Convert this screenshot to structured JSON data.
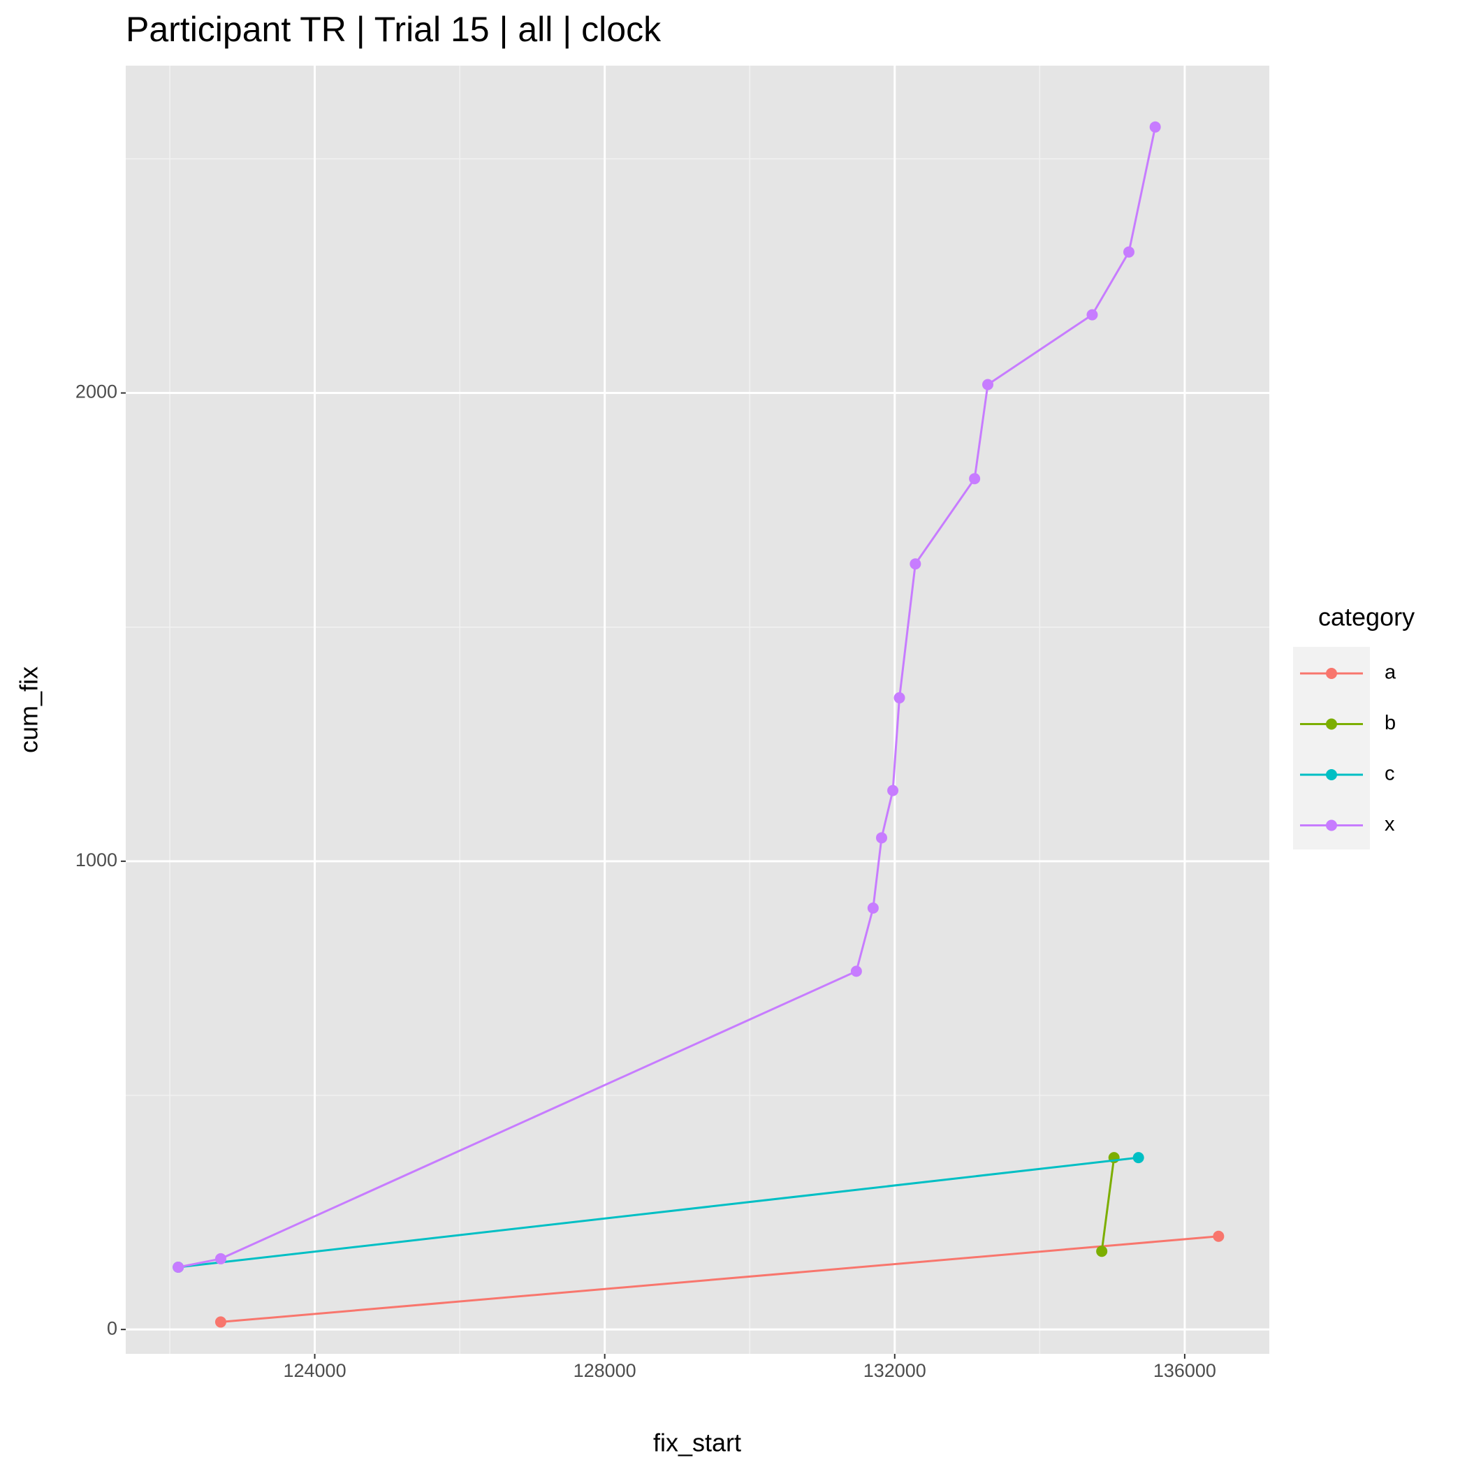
{
  "chart_data": {
    "type": "line",
    "title": "Participant TR | Trial 15 | all | clock",
    "x_label": "fix_start",
    "y_label": "cum_fix",
    "legend_title": "category",
    "legend_position": "right",
    "grid": true,
    "xlim": [
      121393,
      137167
    ],
    "ylim": [
      -52,
      2699
    ],
    "xticks": [
      124000,
      128000,
      132000,
      136000
    ],
    "yticks": [
      0,
      1000,
      2000
    ],
    "series": [
      {
        "name": "a",
        "color": "#f8766d",
        "x": [
          122703,
          136467
        ],
        "values": [
          16,
          199
        ]
      },
      {
        "name": "b",
        "color": "#7cae00",
        "x": [
          134856,
          135025
        ],
        "values": [
          167,
          367
        ]
      },
      {
        "name": "c",
        "color": "#00bfc4",
        "x": [
          122117,
          135362
        ],
        "values": [
          133,
          367
        ]
      },
      {
        "name": "x",
        "color": "#c77cff",
        "x": [
          122117,
          122703,
          131471,
          131702,
          131819,
          131974,
          132065,
          132285,
          133102,
          133284,
          134724,
          135230,
          135593
        ],
        "values": [
          133,
          151,
          765,
          900,
          1050,
          1151,
          1349,
          1635,
          1817,
          2018,
          2167,
          2301,
          2568
        ]
      }
    ]
  }
}
